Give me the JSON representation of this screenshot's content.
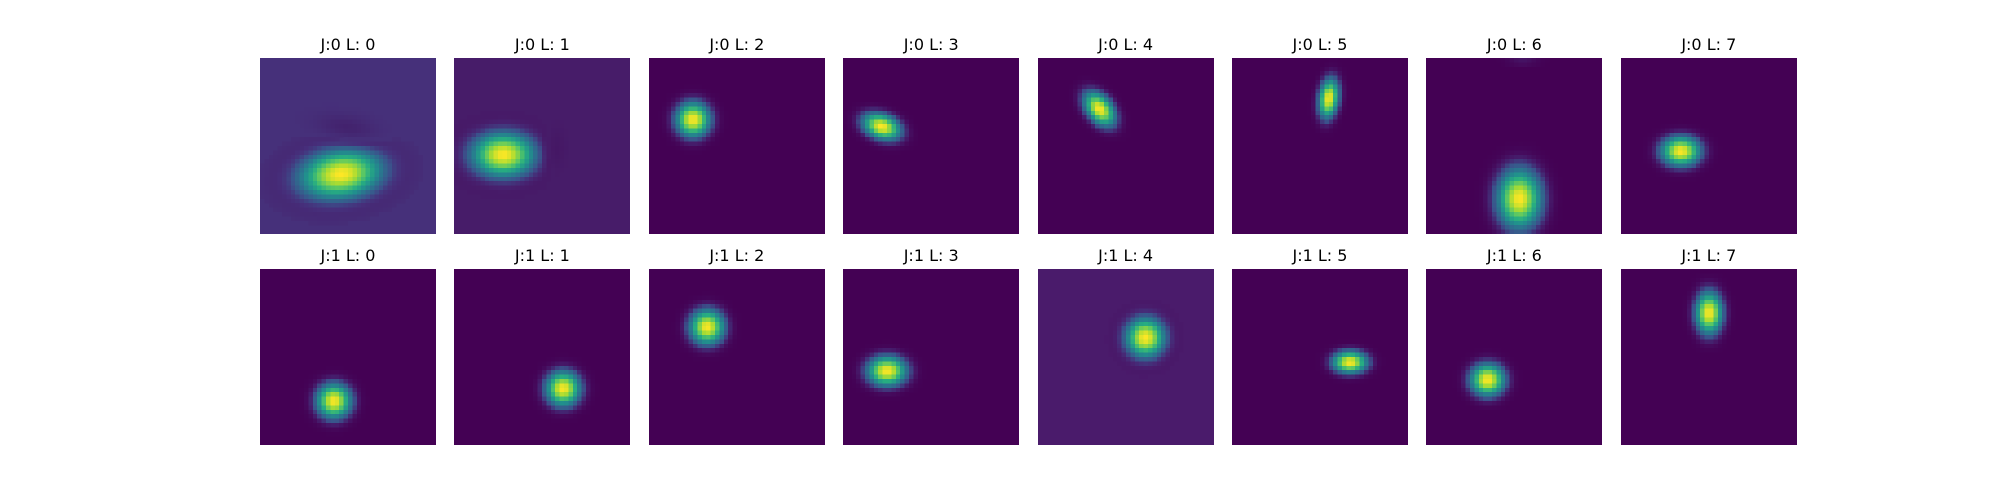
{
  "chart_data": {
    "type": "heatmap",
    "colormap": "viridis",
    "grid": false,
    "panels": [
      {
        "title": "J:0 L: 0",
        "background": "#46307a",
        "blobs": [
          {
            "cx": 0.46,
            "cy": 0.66,
            "sx": 0.17,
            "sy": 0.1,
            "rot": -8,
            "amp": 1.0
          },
          {
            "cx": 0.5,
            "cy": 0.4,
            "sx": 0.12,
            "sy": 0.05,
            "rot": 10,
            "amp": -0.35
          }
        ]
      },
      {
        "title": "J:0 L: 1",
        "background": "#471c69",
        "blobs": [
          {
            "cx": 0.28,
            "cy": 0.55,
            "sx": 0.13,
            "sy": 0.09,
            "rot": 0,
            "amp": 1.0
          },
          {
            "cx": 0.58,
            "cy": 0.52,
            "sx": 0.04,
            "sy": 0.08,
            "rot": 0,
            "amp": -0.25
          }
        ]
      },
      {
        "title": "J:0 L: 2",
        "background": "#440154",
        "blobs": [
          {
            "cx": 0.25,
            "cy": 0.35,
            "sx": 0.07,
            "sy": 0.07,
            "rot": 0,
            "amp": 1.0
          }
        ]
      },
      {
        "title": "J:0 L: 3",
        "background": "#440154",
        "blobs": [
          {
            "cx": 0.22,
            "cy": 0.39,
            "sx": 0.08,
            "sy": 0.05,
            "rot": 20,
            "amp": 1.0
          }
        ]
      },
      {
        "title": "J:0 L: 4",
        "background": "#440154",
        "blobs": [
          {
            "cx": 0.35,
            "cy": 0.29,
            "sx": 0.08,
            "sy": 0.05,
            "rot": 50,
            "amp": 1.0
          }
        ]
      },
      {
        "title": "J:0 L: 5",
        "background": "#440154",
        "blobs": [
          {
            "cx": 0.55,
            "cy": 0.23,
            "sx": 0.04,
            "sy": 0.08,
            "rot": 8,
            "amp": 1.0
          }
        ]
      },
      {
        "title": "J:0 L: 6",
        "background": "#440154",
        "blobs": [
          {
            "cx": 0.53,
            "cy": 0.8,
            "sx": 0.09,
            "sy": 0.12,
            "rot": 0,
            "amp": 1.0
          },
          {
            "cx": 0.55,
            "cy": 0.02,
            "sx": 0.08,
            "sy": 0.02,
            "rot": 0,
            "amp": 0.12
          }
        ]
      },
      {
        "title": "J:0 L: 7",
        "background": "#440154",
        "blobs": [
          {
            "cx": 0.34,
            "cy": 0.53,
            "sx": 0.08,
            "sy": 0.06,
            "rot": 0,
            "amp": 1.0
          }
        ]
      },
      {
        "title": "J:1 L: 0",
        "background": "#440154",
        "blobs": [
          {
            "cx": 0.42,
            "cy": 0.75,
            "sx": 0.07,
            "sy": 0.07,
            "rot": 0,
            "amp": 1.0
          }
        ]
      },
      {
        "title": "J:1 L: 1",
        "background": "#440154",
        "blobs": [
          {
            "cx": 0.62,
            "cy": 0.68,
            "sx": 0.07,
            "sy": 0.07,
            "rot": 0,
            "amp": 1.0
          }
        ]
      },
      {
        "title": "J:1 L: 2",
        "background": "#440154",
        "blobs": [
          {
            "cx": 0.33,
            "cy": 0.33,
            "sx": 0.07,
            "sy": 0.07,
            "rot": 0,
            "amp": 1.0
          }
        ]
      },
      {
        "title": "J:1 L: 3",
        "background": "#440154",
        "blobs": [
          {
            "cx": 0.25,
            "cy": 0.58,
            "sx": 0.08,
            "sy": 0.06,
            "rot": 0,
            "amp": 1.0
          }
        ]
      },
      {
        "title": "J:1 L: 4",
        "background": "#4a1b6b",
        "blobs": [
          {
            "cx": 0.61,
            "cy": 0.39,
            "sx": 0.08,
            "sy": 0.08,
            "rot": 0,
            "amp": 1.0
          }
        ]
      },
      {
        "title": "J:1 L: 5",
        "background": "#440154",
        "blobs": [
          {
            "cx": 0.67,
            "cy": 0.53,
            "sx": 0.07,
            "sy": 0.045,
            "rot": 0,
            "amp": 1.0
          }
        ]
      },
      {
        "title": "J:1 L: 6",
        "background": "#440154",
        "blobs": [
          {
            "cx": 0.35,
            "cy": 0.63,
            "sx": 0.07,
            "sy": 0.065,
            "rot": 0,
            "amp": 1.0
          }
        ]
      },
      {
        "title": "J:1 L: 7",
        "background": "#440154",
        "blobs": [
          {
            "cx": 0.5,
            "cy": 0.25,
            "sx": 0.055,
            "sy": 0.085,
            "rot": 0,
            "amp": 1.0
          }
        ]
      }
    ]
  }
}
